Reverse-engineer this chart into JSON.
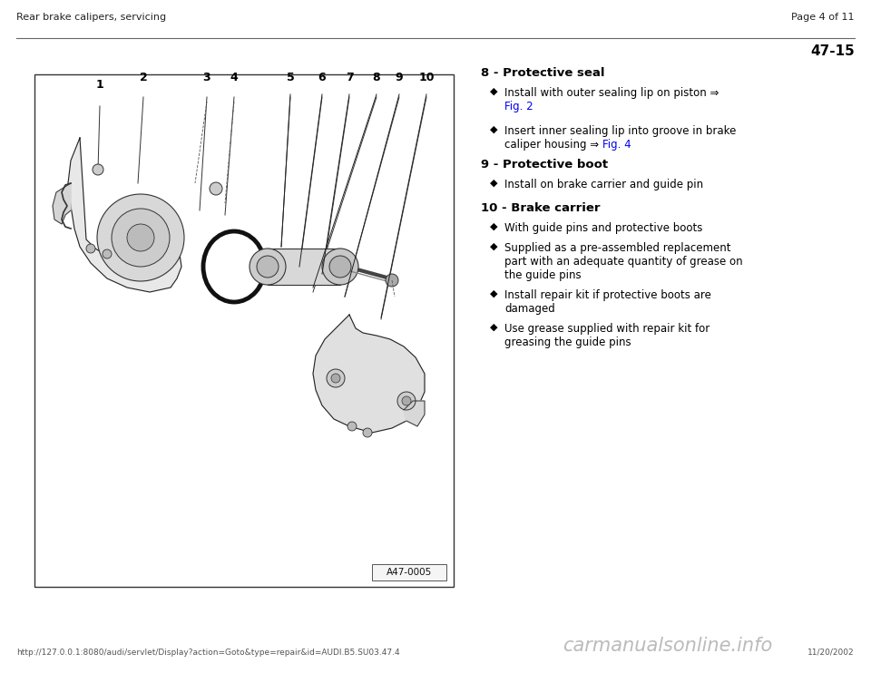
{
  "bg_color": "#ffffff",
  "header_left": "Rear brake calipers, servicing",
  "header_right": "Page 4 of 11",
  "page_number": "47-15",
  "image_label": "A47-0005",
  "footer_url": "http://127.0.0.1:8080/audi/servlet/Display?action=Goto&type=repair&id=AUDI.B5.SU03.47.4",
  "footer_date": "11/20/2002",
  "footer_watermark": "carmanualsonline.info",
  "link_color": "#0000ee",
  "text_color": "#000000",
  "gray_color": "#888888"
}
